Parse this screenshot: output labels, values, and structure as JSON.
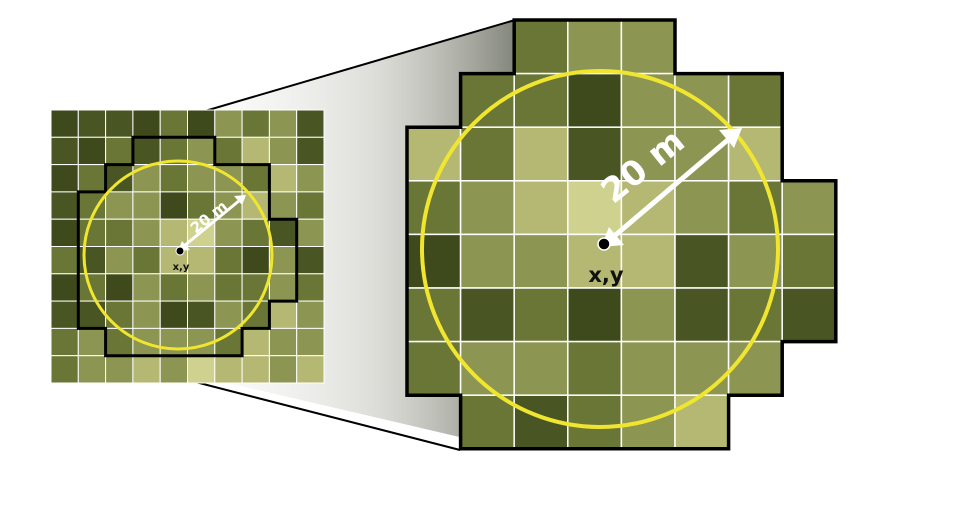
{
  "labels": {
    "distance": "20 m",
    "point": "x,y"
  },
  "colors": {
    "ring": "#f0e630",
    "outline": "#000000",
    "grid_line": "#ffffff",
    "arrow_large": "#ffffff",
    "arrow_small": "#ffffff",
    "point_label_large": "#111111",
    "point_label_small": "#111111",
    "distance_large": "#ffffff",
    "distance_small": "#ffffff",
    "shades": [
      "#3e4a1c",
      "#4a5524",
      "#6a7636",
      "#8c9551",
      "#b5b872",
      "#cfd18f"
    ]
  },
  "overview_grid": {
    "rows": 10,
    "cols": 10,
    "cells": [
      [
        0,
        1,
        1,
        0,
        2,
        0,
        3,
        2,
        3,
        1
      ],
      [
        1,
        0,
        2,
        1,
        2,
        3,
        2,
        4,
        3,
        1
      ],
      [
        0,
        2,
        1,
        3,
        2,
        3,
        3,
        2,
        4,
        3
      ],
      [
        1,
        2,
        3,
        3,
        0,
        2,
        3,
        4,
        3,
        2
      ],
      [
        0,
        2,
        2,
        3,
        4,
        5,
        3,
        2,
        1,
        3
      ],
      [
        2,
        1,
        3,
        2,
        4,
        4,
        2,
        0,
        3,
        1
      ],
      [
        0,
        2,
        0,
        3,
        2,
        3,
        2,
        2,
        3,
        2
      ],
      [
        1,
        1,
        2,
        3,
        0,
        1,
        3,
        2,
        4,
        3
      ],
      [
        2,
        3,
        2,
        3,
        3,
        3,
        2,
        4,
        3,
        3
      ],
      [
        2,
        3,
        3,
        4,
        3,
        5,
        4,
        4,
        3,
        4
      ]
    ]
  },
  "detail_grid": {
    "rows": 8,
    "cols": 8,
    "cells": [
      [
        null,
        null,
        2,
        3,
        3,
        null,
        null,
        null
      ],
      [
        null,
        2,
        2,
        0,
        3,
        3,
        2,
        null
      ],
      [
        4,
        2,
        4,
        1,
        3,
        3,
        4,
        null
      ],
      [
        2,
        3,
        4,
        5,
        4,
        3,
        2,
        3
      ],
      [
        0,
        3,
        3,
        4,
        4,
        1,
        3,
        2
      ],
      [
        2,
        1,
        2,
        0,
        3,
        1,
        2,
        1
      ],
      [
        2,
        3,
        3,
        2,
        3,
        3,
        3,
        null
      ],
      [
        null,
        2,
        1,
        2,
        3,
        4,
        null,
        null
      ]
    ]
  },
  "footprint_mask": [
    [
      0,
      0,
      1,
      1,
      1,
      0,
      0,
      0
    ],
    [
      0,
      1,
      1,
      1,
      1,
      1,
      1,
      0
    ],
    [
      1,
      1,
      1,
      1,
      1,
      1,
      1,
      0
    ],
    [
      1,
      1,
      1,
      1,
      1,
      1,
      1,
      1
    ],
    [
      1,
      1,
      1,
      1,
      1,
      1,
      1,
      1
    ],
    [
      1,
      1,
      1,
      1,
      1,
      1,
      1,
      1
    ],
    [
      1,
      1,
      1,
      1,
      1,
      1,
      1,
      0
    ],
    [
      0,
      1,
      1,
      1,
      1,
      1,
      0,
      0
    ]
  ]
}
